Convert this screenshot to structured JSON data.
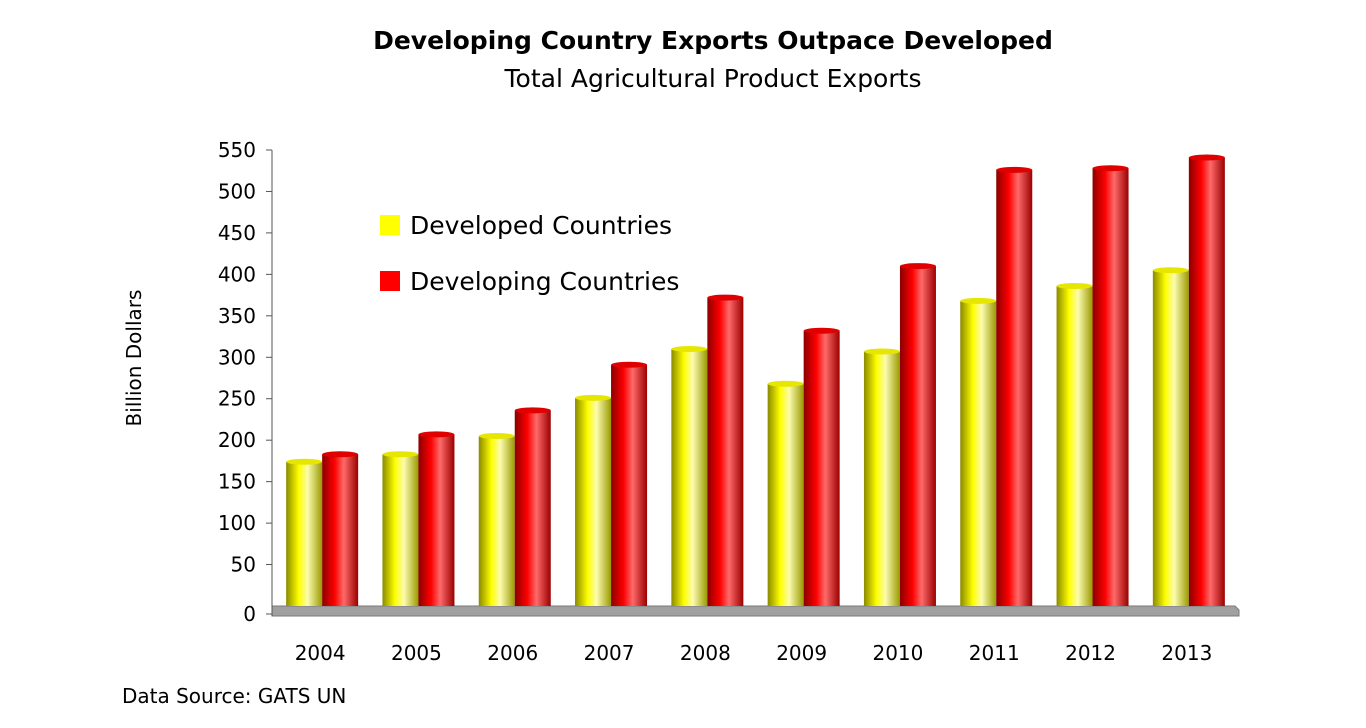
{
  "chart_data": {
    "type": "bar",
    "title": "Developing Country Exports Outpace Developed",
    "subtitle": "Total Agricultural Product Exports",
    "ylabel": "Billion Dollars",
    "xlabel": "",
    "source": "Data Source: GATS UN",
    "categories": [
      "2004",
      "2005",
      "2006",
      "2007",
      "2008",
      "2009",
      "2010",
      "2011",
      "2012",
      "2013"
    ],
    "series": [
      {
        "name": "Developed Countries",
        "color": "#ffff00",
        "values": [
          174,
          183,
          205,
          251,
          310,
          268,
          307,
          368,
          386,
          405
        ]
      },
      {
        "name": "Developing Countries",
        "color": "#ff0000",
        "values": [
          183,
          207,
          236,
          291,
          372,
          332,
          410,
          526,
          528,
          541
        ]
      }
    ],
    "ylim": [
      0,
      550
    ],
    "yticks": [
      "0",
      "50",
      "100",
      "150",
      "200",
      "250",
      "300",
      "350",
      "400",
      "450",
      "500",
      "550"
    ],
    "grid": false,
    "legend_position": "top-left"
  }
}
